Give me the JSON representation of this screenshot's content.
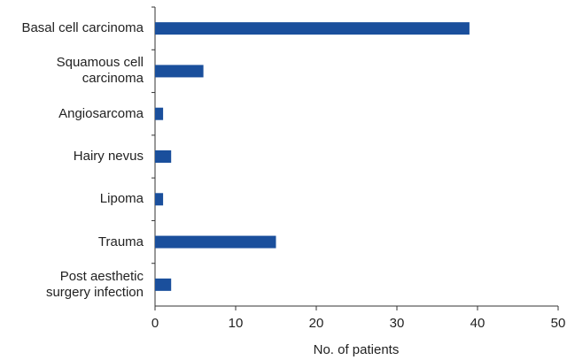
{
  "chart_data": {
    "type": "bar",
    "orientation": "horizontal",
    "categories": [
      "Basal cell carcinoma",
      "Squamous cell\ncarcinoma",
      "Angiosarcoma",
      "Hairy nevus",
      "Lipoma",
      "Trauma",
      "Post aesthetic\nsurgery infection"
    ],
    "values": [
      39,
      6,
      1,
      2,
      1,
      15,
      2
    ],
    "color": "#1a4f9c",
    "xlabel": "No. of patients",
    "xlim": [
      0,
      50
    ],
    "xticks": [
      0,
      10,
      20,
      30,
      40,
      50
    ],
    "grid": false
  }
}
